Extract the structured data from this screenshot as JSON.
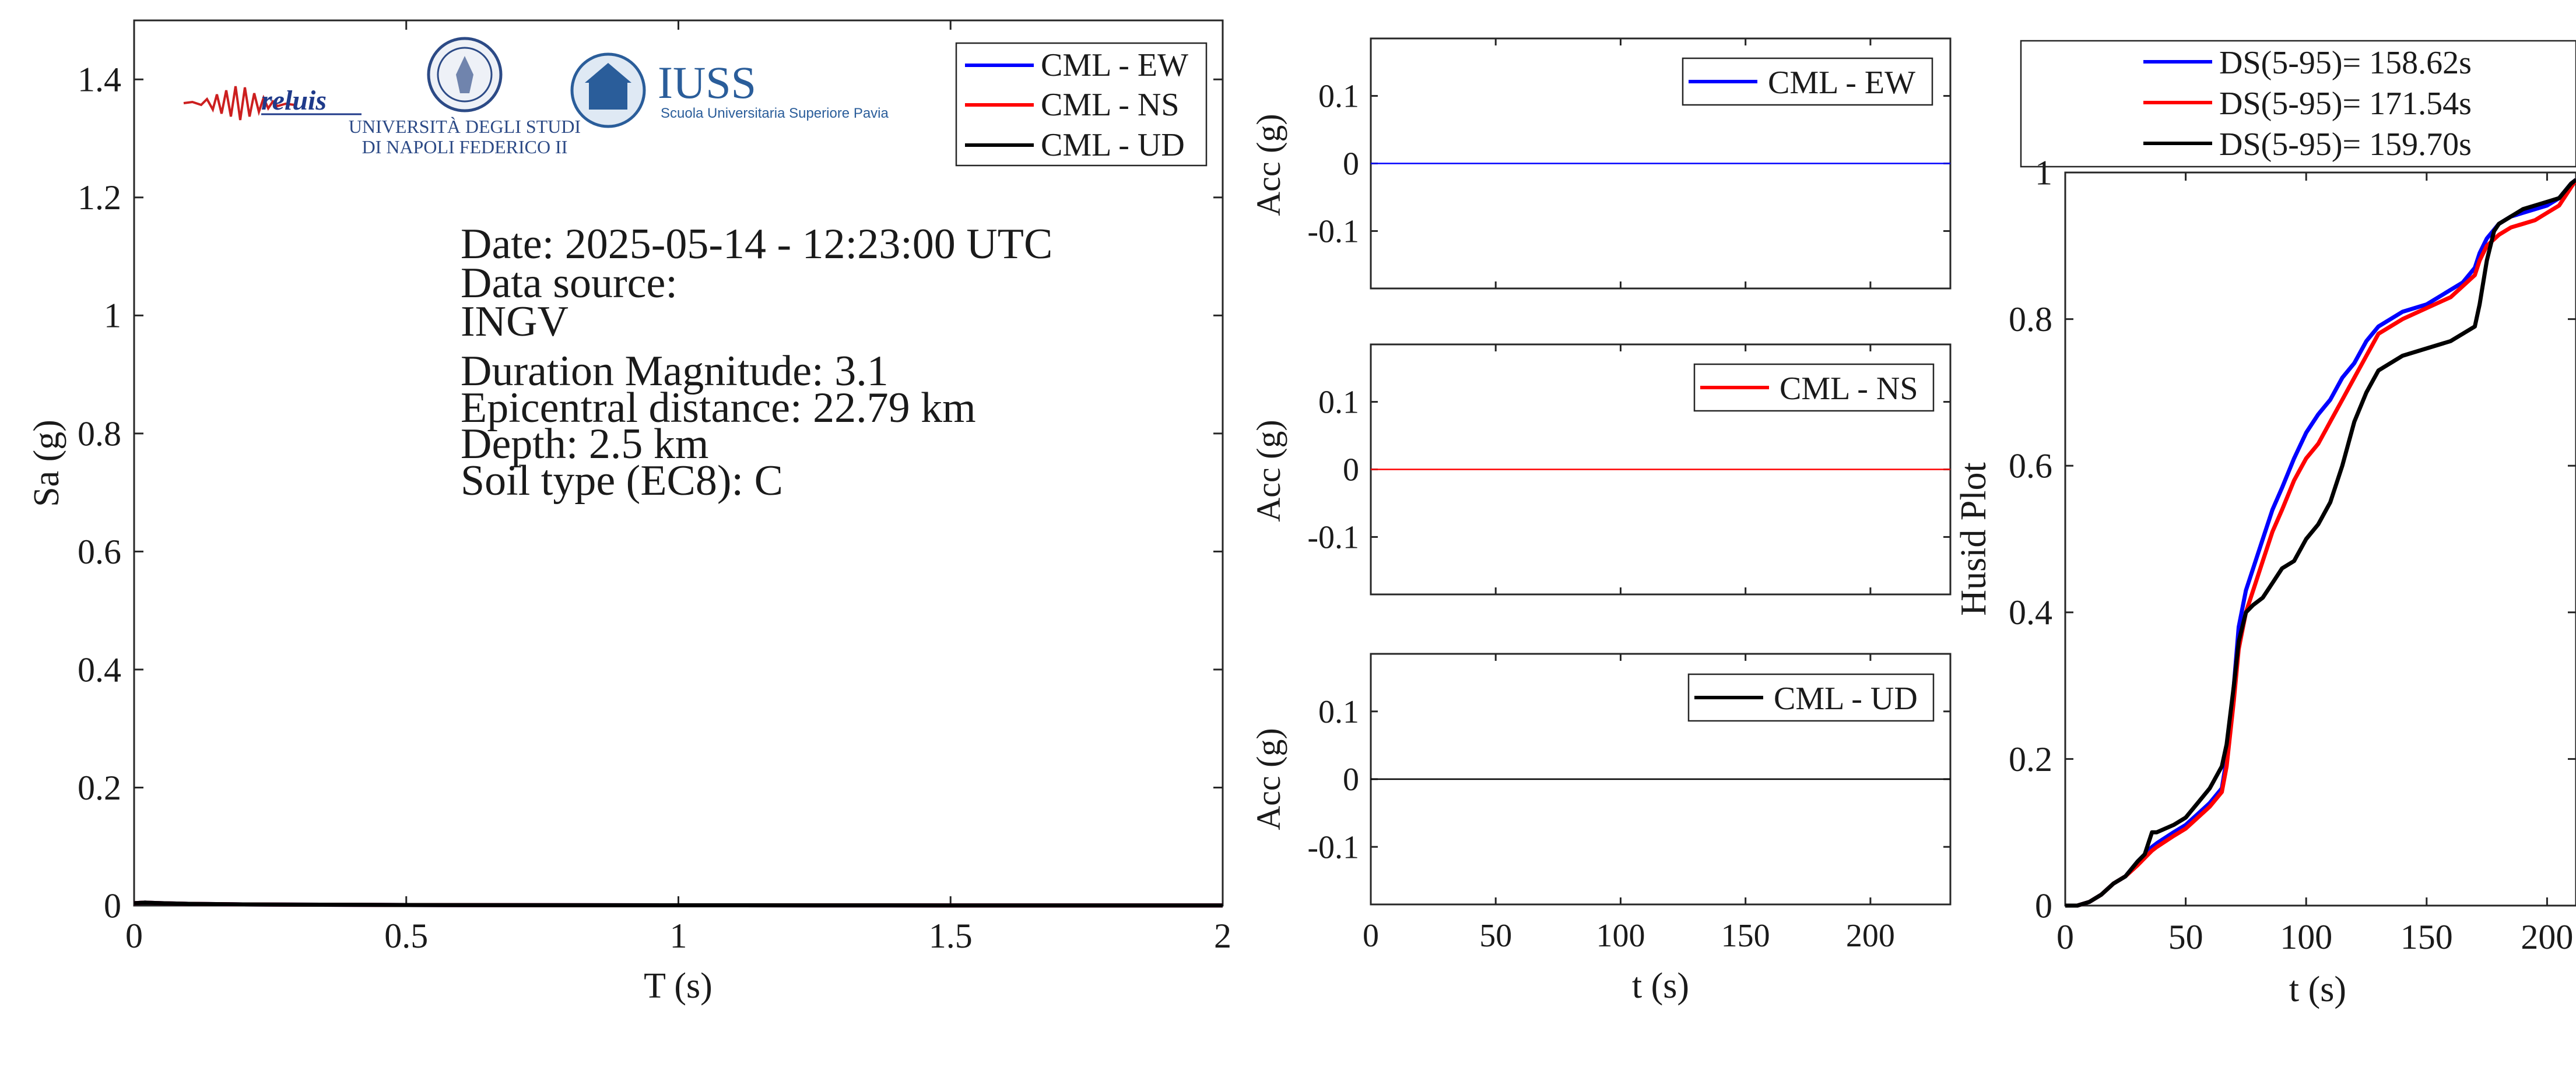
{
  "logos": {
    "reluis_text": "reluis",
    "unina_line1": "UNIVERSITÀ DEGLI STUDI",
    "unina_line2": "DI NAPOLI FEDERICO II",
    "iuss_title": "IUSS",
    "iuss_subtitle": "Scuola Universitaria Superiore Pavia"
  },
  "info": {
    "date": "Date: 2025-05-14 - 12:23:00 UTC",
    "source_label": "Data source:",
    "source_value": "INGV",
    "magnitude": "Duration Magnitude: 3.1",
    "distance": "Epicentral distance: 22.79 km",
    "depth": "Depth: 2.5 km",
    "soil": "Soil type (EC8): C"
  },
  "colors": {
    "ew": "#0000ff",
    "ns": "#ff0000",
    "ud": "#000000"
  },
  "chart_data": [
    {
      "id": "spectrum",
      "type": "line",
      "xlabel": "T (s)",
      "ylabel": "Sa (g)",
      "xlim": [
        0,
        2
      ],
      "ylim": [
        0,
        1.5
      ],
      "xticks": [
        0,
        0.5,
        1,
        1.5,
        2
      ],
      "xtick_labels": [
        "0",
        "0.5",
        "1",
        "1.5",
        "2"
      ],
      "yticks": [
        0,
        0.2,
        0.4,
        0.6,
        0.8,
        1,
        1.2,
        1.4
      ],
      "ytick_labels": [
        "0",
        "0.2",
        "0.4",
        "0.6",
        "0.8",
        "1",
        "1.2",
        "1.4"
      ],
      "grid": false,
      "legend": "top-right",
      "series": [
        {
          "name": "CML - EW",
          "color": "#0000ff",
          "x": [
            0,
            0.02,
            0.05,
            0.1,
            0.2,
            0.5,
            1,
            1.5,
            2
          ],
          "y": [
            0.004,
            0.005,
            0.004,
            0.003,
            0.002,
            0.001,
            0.0005,
            0.0003,
            0.0002
          ]
        },
        {
          "name": "CML - NS",
          "color": "#ff0000",
          "x": [
            0,
            0.02,
            0.05,
            0.1,
            0.2,
            0.5,
            1,
            1.5,
            2
          ],
          "y": [
            0.004,
            0.005,
            0.004,
            0.003,
            0.002,
            0.001,
            0.0005,
            0.0003,
            0.0002
          ]
        },
        {
          "name": "CML - UD",
          "color": "#000000",
          "x": [
            0,
            0.02,
            0.05,
            0.1,
            0.2,
            0.5,
            1,
            1.5,
            2
          ],
          "y": [
            0.004,
            0.005,
            0.004,
            0.003,
            0.002,
            0.001,
            0.0005,
            0.0003,
            0.0002
          ]
        }
      ]
    },
    {
      "id": "acc-ew",
      "type": "line",
      "xlabel": "",
      "ylabel": "Acc (g)",
      "xlim": [
        0,
        232
      ],
      "ylim": [
        -0.185,
        0.185
      ],
      "xticks": [
        0,
        50,
        100,
        150,
        200
      ],
      "xtick_labels": [],
      "yticks": [
        0.1,
        0,
        -0.1
      ],
      "ytick_labels": [
        "0.1",
        "0",
        "-0.1"
      ],
      "grid": false,
      "legend": "top-right",
      "series": [
        {
          "name": "CML - EW",
          "color": "#0000ff",
          "x": [
            0,
            232
          ],
          "y": [
            0,
            0
          ]
        }
      ]
    },
    {
      "id": "acc-ns",
      "type": "line",
      "xlabel": "",
      "ylabel": "Acc (g)",
      "xlim": [
        0,
        232
      ],
      "ylim": [
        -0.185,
        0.185
      ],
      "xticks": [
        0,
        50,
        100,
        150,
        200
      ],
      "xtick_labels": [],
      "yticks": [
        0.1,
        0,
        -0.1
      ],
      "ytick_labels": [
        "0.1",
        "0",
        "-0.1"
      ],
      "grid": false,
      "legend": "top-right",
      "series": [
        {
          "name": "CML - NS",
          "color": "#ff0000",
          "x": [
            0,
            232
          ],
          "y": [
            0,
            0
          ]
        }
      ]
    },
    {
      "id": "acc-ud",
      "type": "line",
      "xlabel": "t (s)",
      "ylabel": "Acc (g)",
      "xlim": [
        0,
        232
      ],
      "ylim": [
        -0.185,
        0.185
      ],
      "xticks": [
        0,
        50,
        100,
        150,
        200
      ],
      "xtick_labels": [
        "0",
        "50",
        "100",
        "150",
        "200"
      ],
      "yticks": [
        0.1,
        0,
        -0.1
      ],
      "ytick_labels": [
        "0.1",
        "0",
        "-0.1"
      ],
      "grid": false,
      "legend": "top-right",
      "series": [
        {
          "name": "CML - UD",
          "color": "#000000",
          "x": [
            0,
            232
          ],
          "y": [
            0,
            0
          ]
        }
      ]
    },
    {
      "id": "husid",
      "type": "line",
      "xlabel": "t (s)",
      "ylabel": "Husid Plot",
      "xlim": [
        0,
        212
      ],
      "ylim": [
        0,
        1
      ],
      "xticks": [
        0,
        50,
        100,
        150,
        200
      ],
      "xtick_labels": [
        "0",
        "50",
        "100",
        "150",
        "200"
      ],
      "yticks": [
        0,
        0.2,
        0.4,
        0.6,
        0.8,
        1
      ],
      "ytick_labels": [
        "0",
        "0.2",
        "0.4",
        "0.6",
        "0.8",
        "1"
      ],
      "grid": false,
      "legend": "top (outside)",
      "series": [
        {
          "name": "DS(5-95)= 158.62s",
          "color": "#0000ff",
          "x": [
            0,
            5,
            10,
            15,
            20,
            25,
            30,
            33,
            36,
            38,
            45,
            50,
            55,
            60,
            65,
            67,
            70,
            72,
            75,
            78,
            82,
            86,
            90,
            95,
            100,
            105,
            110,
            115,
            120,
            125,
            130,
            140,
            150,
            160,
            165,
            170,
            172,
            175,
            180,
            185,
            190,
            195,
            200,
            205,
            210,
            212
          ],
          "y": [
            0,
            0,
            0.005,
            0.015,
            0.03,
            0.04,
            0.06,
            0.07,
            0.08,
            0.085,
            0.1,
            0.11,
            0.125,
            0.14,
            0.16,
            0.2,
            0.3,
            0.38,
            0.43,
            0.46,
            0.5,
            0.54,
            0.57,
            0.61,
            0.645,
            0.67,
            0.69,
            0.72,
            0.74,
            0.77,
            0.79,
            0.81,
            0.82,
            0.84,
            0.85,
            0.87,
            0.89,
            0.91,
            0.93,
            0.94,
            0.945,
            0.95,
            0.955,
            0.965,
            0.985,
            0.99
          ]
        },
        {
          "name": "DS(5-95)= 171.54s",
          "color": "#ff0000",
          "x": [
            0,
            5,
            10,
            15,
            20,
            25,
            30,
            33,
            36,
            38,
            45,
            50,
            55,
            60,
            65,
            67,
            70,
            72,
            75,
            78,
            82,
            86,
            90,
            95,
            100,
            105,
            110,
            115,
            120,
            125,
            130,
            140,
            150,
            160,
            165,
            170,
            172,
            175,
            180,
            185,
            190,
            195,
            200,
            205,
            210,
            212
          ],
          "y": [
            0,
            0,
            0.005,
            0.015,
            0.03,
            0.04,
            0.055,
            0.065,
            0.075,
            0.08,
            0.095,
            0.105,
            0.12,
            0.135,
            0.155,
            0.19,
            0.28,
            0.35,
            0.4,
            0.43,
            0.47,
            0.51,
            0.54,
            0.58,
            0.61,
            0.63,
            0.66,
            0.69,
            0.72,
            0.75,
            0.78,
            0.8,
            0.815,
            0.83,
            0.845,
            0.86,
            0.88,
            0.9,
            0.915,
            0.925,
            0.93,
            0.935,
            0.945,
            0.955,
            0.98,
            0.99
          ]
        },
        {
          "name": "DS(5-95)= 159.70s",
          "color": "#000000",
          "x": [
            0,
            5,
            10,
            15,
            20,
            25,
            30,
            33,
            36,
            38,
            45,
            50,
            55,
            60,
            65,
            67,
            70,
            72,
            75,
            78,
            82,
            86,
            90,
            95,
            100,
            105,
            110,
            115,
            120,
            125,
            130,
            140,
            150,
            160,
            165,
            170,
            172,
            175,
            178,
            180,
            185,
            190,
            195,
            200,
            205,
            210,
            212
          ],
          "y": [
            0,
            0,
            0.005,
            0.015,
            0.03,
            0.04,
            0.06,
            0.07,
            0.1,
            0.1,
            0.11,
            0.12,
            0.14,
            0.16,
            0.19,
            0.22,
            0.3,
            0.36,
            0.4,
            0.41,
            0.42,
            0.44,
            0.46,
            0.47,
            0.5,
            0.52,
            0.55,
            0.6,
            0.66,
            0.7,
            0.73,
            0.75,
            0.76,
            0.77,
            0.78,
            0.79,
            0.82,
            0.88,
            0.92,
            0.93,
            0.94,
            0.95,
            0.955,
            0.96,
            0.965,
            0.985,
            0.99
          ]
        }
      ]
    }
  ]
}
